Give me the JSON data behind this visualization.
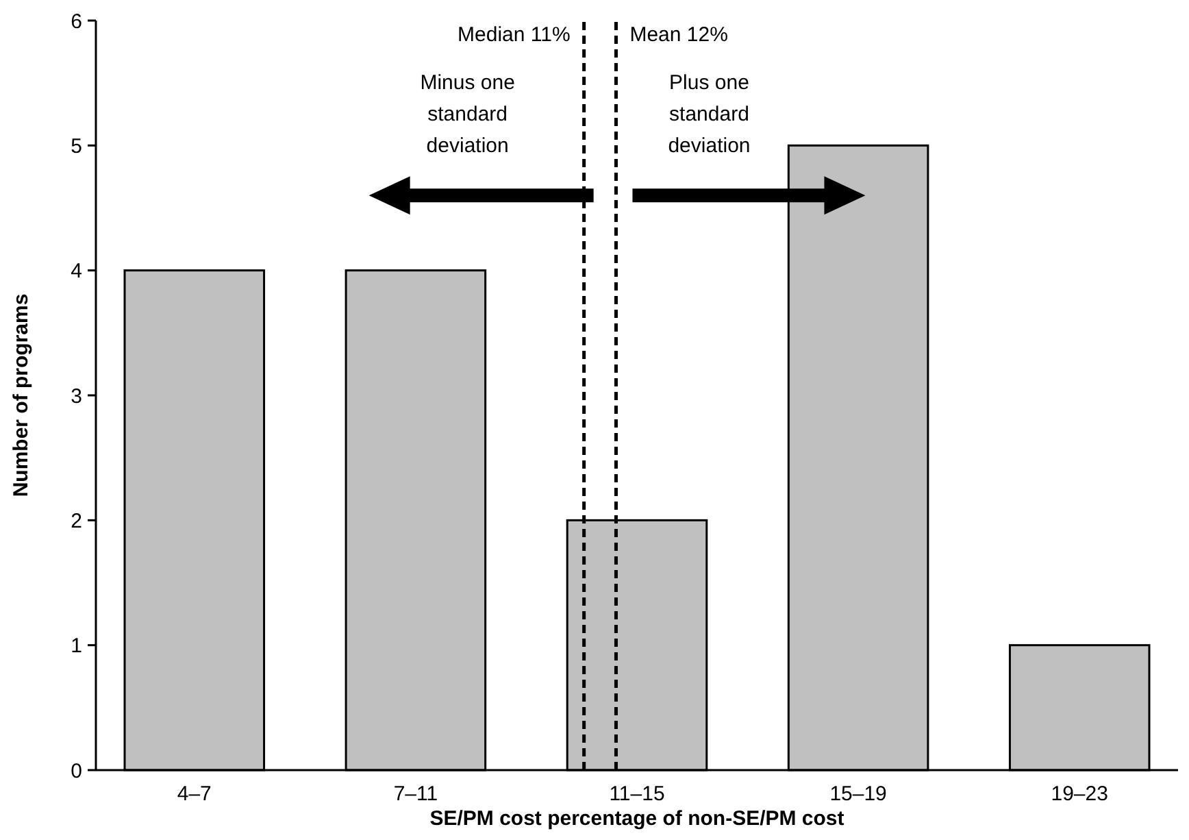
{
  "chart_data": {
    "type": "bar",
    "xlabel": "SE/PM cost percentage of non-SE/PM cost",
    "ylabel": "Number of programs",
    "categories": [
      "4–7",
      "7–11",
      "11–15",
      "15–19",
      "19–23"
    ],
    "values": [
      4,
      4,
      2,
      5,
      1
    ],
    "color": "#c0c0c0",
    "ylim": [
      0,
      6
    ],
    "yticks": [
      0,
      1,
      2,
      3,
      4,
      5,
      6
    ],
    "grid": false,
    "ref_lines": [
      {
        "axis": "x",
        "value": "11–15",
        "label": "Median 11%",
        "line_style": "dashed",
        "color": "#000000"
      },
      {
        "axis": "x",
        "value": "11–15",
        "label": "Mean 12%",
        "line_style": "dashed",
        "color": "#000000"
      }
    ],
    "annotations": [
      "Minus one standard deviation",
      "Plus one standard deviation"
    ]
  }
}
